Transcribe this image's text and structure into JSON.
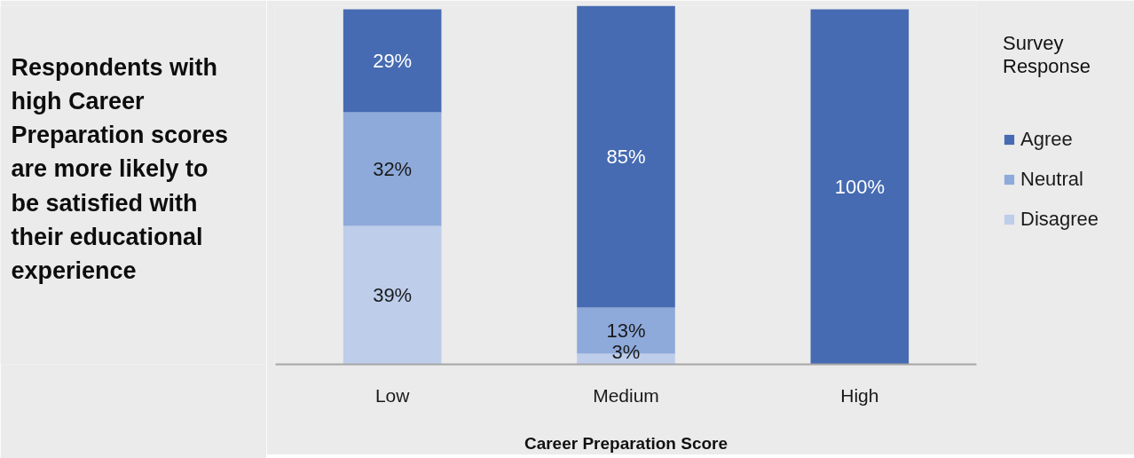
{
  "chart_data": {
    "type": "bar",
    "title": "Respondents with high Career Preparation scores are more likely to be satisfied with their educational experience",
    "xlabel": "Career Preparation Score",
    "legend_title": "Survey Response",
    "categories": [
      "Low",
      "Medium",
      "High"
    ],
    "stacked": true,
    "series": [
      {
        "name": "Disagree",
        "color": "#bdcdea",
        "values": [
          39,
          3,
          null
        ],
        "value_labels": [
          "39%",
          "3%",
          null
        ]
      },
      {
        "name": "Neutral",
        "color": "#8eaadb",
        "values": [
          32,
          13,
          null
        ],
        "value_labels": [
          "32%",
          "13%",
          null
        ]
      },
      {
        "name": "Agree",
        "color": "#466bb2",
        "values": [
          29,
          85,
          100
        ],
        "value_labels": [
          "29%",
          "85%",
          "100%"
        ]
      }
    ],
    "legend": "right",
    "grid": false,
    "tick_labels": "x"
  }
}
